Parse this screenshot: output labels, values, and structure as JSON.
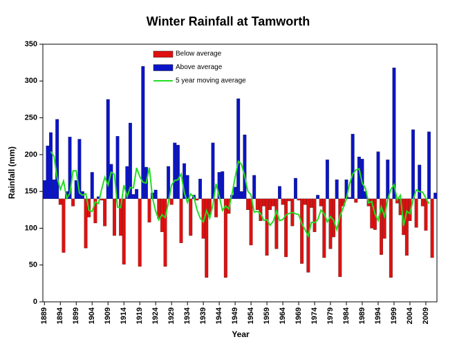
{
  "chart_data": {
    "type": "bar",
    "title": "Winter Rainfall at Tamworth",
    "x_label": "Year",
    "y_label": "Rainfall (mm)",
    "x": [
      1889,
      1890,
      1891,
      1892,
      1893,
      1894,
      1895,
      1896,
      1897,
      1898,
      1899,
      1900,
      1901,
      1902,
      1903,
      1904,
      1905,
      1906,
      1907,
      1908,
      1909,
      1910,
      1911,
      1912,
      1913,
      1914,
      1915,
      1916,
      1917,
      1918,
      1919,
      1920,
      1921,
      1922,
      1923,
      1924,
      1925,
      1926,
      1927,
      1928,
      1929,
      1930,
      1931,
      1932,
      1933,
      1934,
      1935,
      1936,
      1937,
      1938,
      1939,
      1940,
      1941,
      1942,
      1943,
      1944,
      1945,
      1946,
      1947,
      1948,
      1949,
      1950,
      1951,
      1952,
      1953,
      1954,
      1955,
      1956,
      1957,
      1958,
      1959,
      1960,
      1961,
      1962,
      1963,
      1964,
      1965,
      1966,
      1967,
      1968,
      1969,
      1970,
      1971,
      1972,
      1973,
      1974,
      1975,
      1976,
      1977,
      1978,
      1979,
      1980,
      1981,
      1982,
      1983,
      1984,
      1985,
      1986,
      1987,
      1988,
      1989,
      1990,
      1991,
      1992,
      1993,
      1994,
      1995,
      1996,
      1997,
      1998,
      1999,
      2000,
      2001,
      2002,
      2003,
      2004,
      2005,
      2006,
      2007,
      2008,
      2009,
      2010,
      2011,
      2012
    ],
    "baseline": 140,
    "series": [
      {
        "name": "Below average",
        "color": "#e01010",
        "values": [
          null,
          null,
          null,
          null,
          null,
          132,
          67,
          null,
          null,
          130,
          null,
          null,
          null,
          73,
          115,
          null,
          107,
          null,
          138,
          103,
          null,
          null,
          90,
          null,
          90,
          51,
          null,
          null,
          null,
          null,
          48,
          null,
          null,
          108,
          null,
          null,
          113,
          95,
          48,
          null,
          132,
          null,
          null,
          80,
          null,
          null,
          90,
          null,
          138,
          null,
          86,
          33,
          118,
          null,
          115,
          null,
          null,
          33,
          120,
          null,
          null,
          null,
          null,
          null,
          125,
          77,
          null,
          125,
          110,
          130,
          63,
          125,
          130,
          72,
          null,
          132,
          61,
          137,
          103,
          null,
          138,
          52,
          132,
          40,
          128,
          95,
          null,
          130,
          60,
          null,
          72,
          88,
          null,
          34,
          130,
          null,
          null,
          null,
          135,
          null,
          null,
          null,
          130,
          100,
          98,
          null,
          64,
          86,
          null,
          33,
          null,
          134,
          118,
          91,
          63,
          110,
          null,
          101,
          null,
          130,
          97,
          null,
          60,
          null
        ]
      },
      {
        "name": "Above average",
        "color": "#0a14c8",
        "values": [
          165,
          212,
          230,
          166,
          248,
          null,
          null,
          150,
          224,
          null,
          165,
          221,
          150,
          null,
          null,
          176,
          null,
          143,
          null,
          null,
          275,
          187,
          null,
          225,
          null,
          null,
          184,
          243,
          146,
          153,
          null,
          320,
          183,
          null,
          148,
          152,
          null,
          null,
          null,
          184,
          null,
          216,
          213,
          null,
          188,
          172,
          null,
          145,
          null,
          167,
          null,
          null,
          null,
          216,
          null,
          176,
          177,
          null,
          null,
          145,
          156,
          276,
          150,
          227,
          null,
          null,
          172,
          null,
          null,
          null,
          null,
          null,
          null,
          null,
          157,
          null,
          null,
          null,
          null,
          168,
          null,
          null,
          null,
          null,
          null,
          null,
          145,
          null,
          null,
          193,
          null,
          null,
          166,
          null,
          null,
          166,
          142,
          228,
          null,
          197,
          194,
          150,
          null,
          null,
          null,
          204,
          null,
          null,
          193,
          null,
          318,
          null,
          null,
          null,
          null,
          null,
          234,
          null,
          186,
          null,
          null,
          231,
          null,
          148
        ]
      },
      {
        "name": "5 year moving average",
        "type": "line",
        "color": "#22dd22",
        "values": [
          null,
          null,
          204.2,
          197.6,
          168.6,
          152.6,
          164.2,
          140.6,
          147.2,
          178,
          178,
          147.8,
          144.8,
          147,
          124.2,
          122.8,
          135.8,
          133.4,
          153.2,
          169.2,
          158.6,
          176,
          173.4,
          128.6,
          128,
          158.6,
          142.8,
          155.4,
          154.8,
          182,
          170,
          162.4,
          161.4,
          182.2,
          140.8,
          123.2,
          111.2,
          118.4,
          114.4,
          135,
          158.6,
          165,
          165.8,
          173.8,
          148.6,
          135,
          146.6,
          142.4,
          125.2,
          113.8,
          108.4,
          124,
          113.6,
          131.6,
          160.4,
          143.4,
          124.2,
          130.2,
          126.2,
          146,
          169.4,
          190.8,
          186.8,
          171,
          150.2,
          145.2,
          121.8,
          122.8,
          120,
          110.6,
          111.6,
          104,
          109.4,
          123.2,
          110.4,
          111.8,
          118,
          120.2,
          121.4,
          119.6,
          118.6,
          106,
          98,
          89.4,
          108,
          107.6,
          111.6,
          124.6,
          120,
          108.6,
          115.8,
          110.6,
          98,
          116.8,
          127.6,
          140,
          160.2,
          173.6,
          179.2,
          180.8,
          161.2,
          154.2,
          134.4,
          136.4,
          119.2,
          110.4,
          129,
          116,
          138.8,
          152.8,
          159.2,
          138.8,
          144.8,
          103.2,
          123.2,
          119.8,
          138.8,
          152.2,
          149.6,
          149,
          140.8,
          133.2,
          null,
          null
        ]
      }
    ],
    "xlim": [
      1888.5,
      2012.5
    ],
    "xticks": [
      1889,
      1894,
      1899,
      1904,
      1909,
      1914,
      1919,
      1924,
      1929,
      1934,
      1939,
      1944,
      1949,
      1954,
      1959,
      1964,
      1969,
      1974,
      1979,
      1984,
      1989,
      1994,
      1999,
      2004,
      2009
    ],
    "ylim": [
      0,
      350
    ],
    "yticks": [
      0,
      50,
      100,
      150,
      200,
      250,
      300,
      350
    ]
  }
}
